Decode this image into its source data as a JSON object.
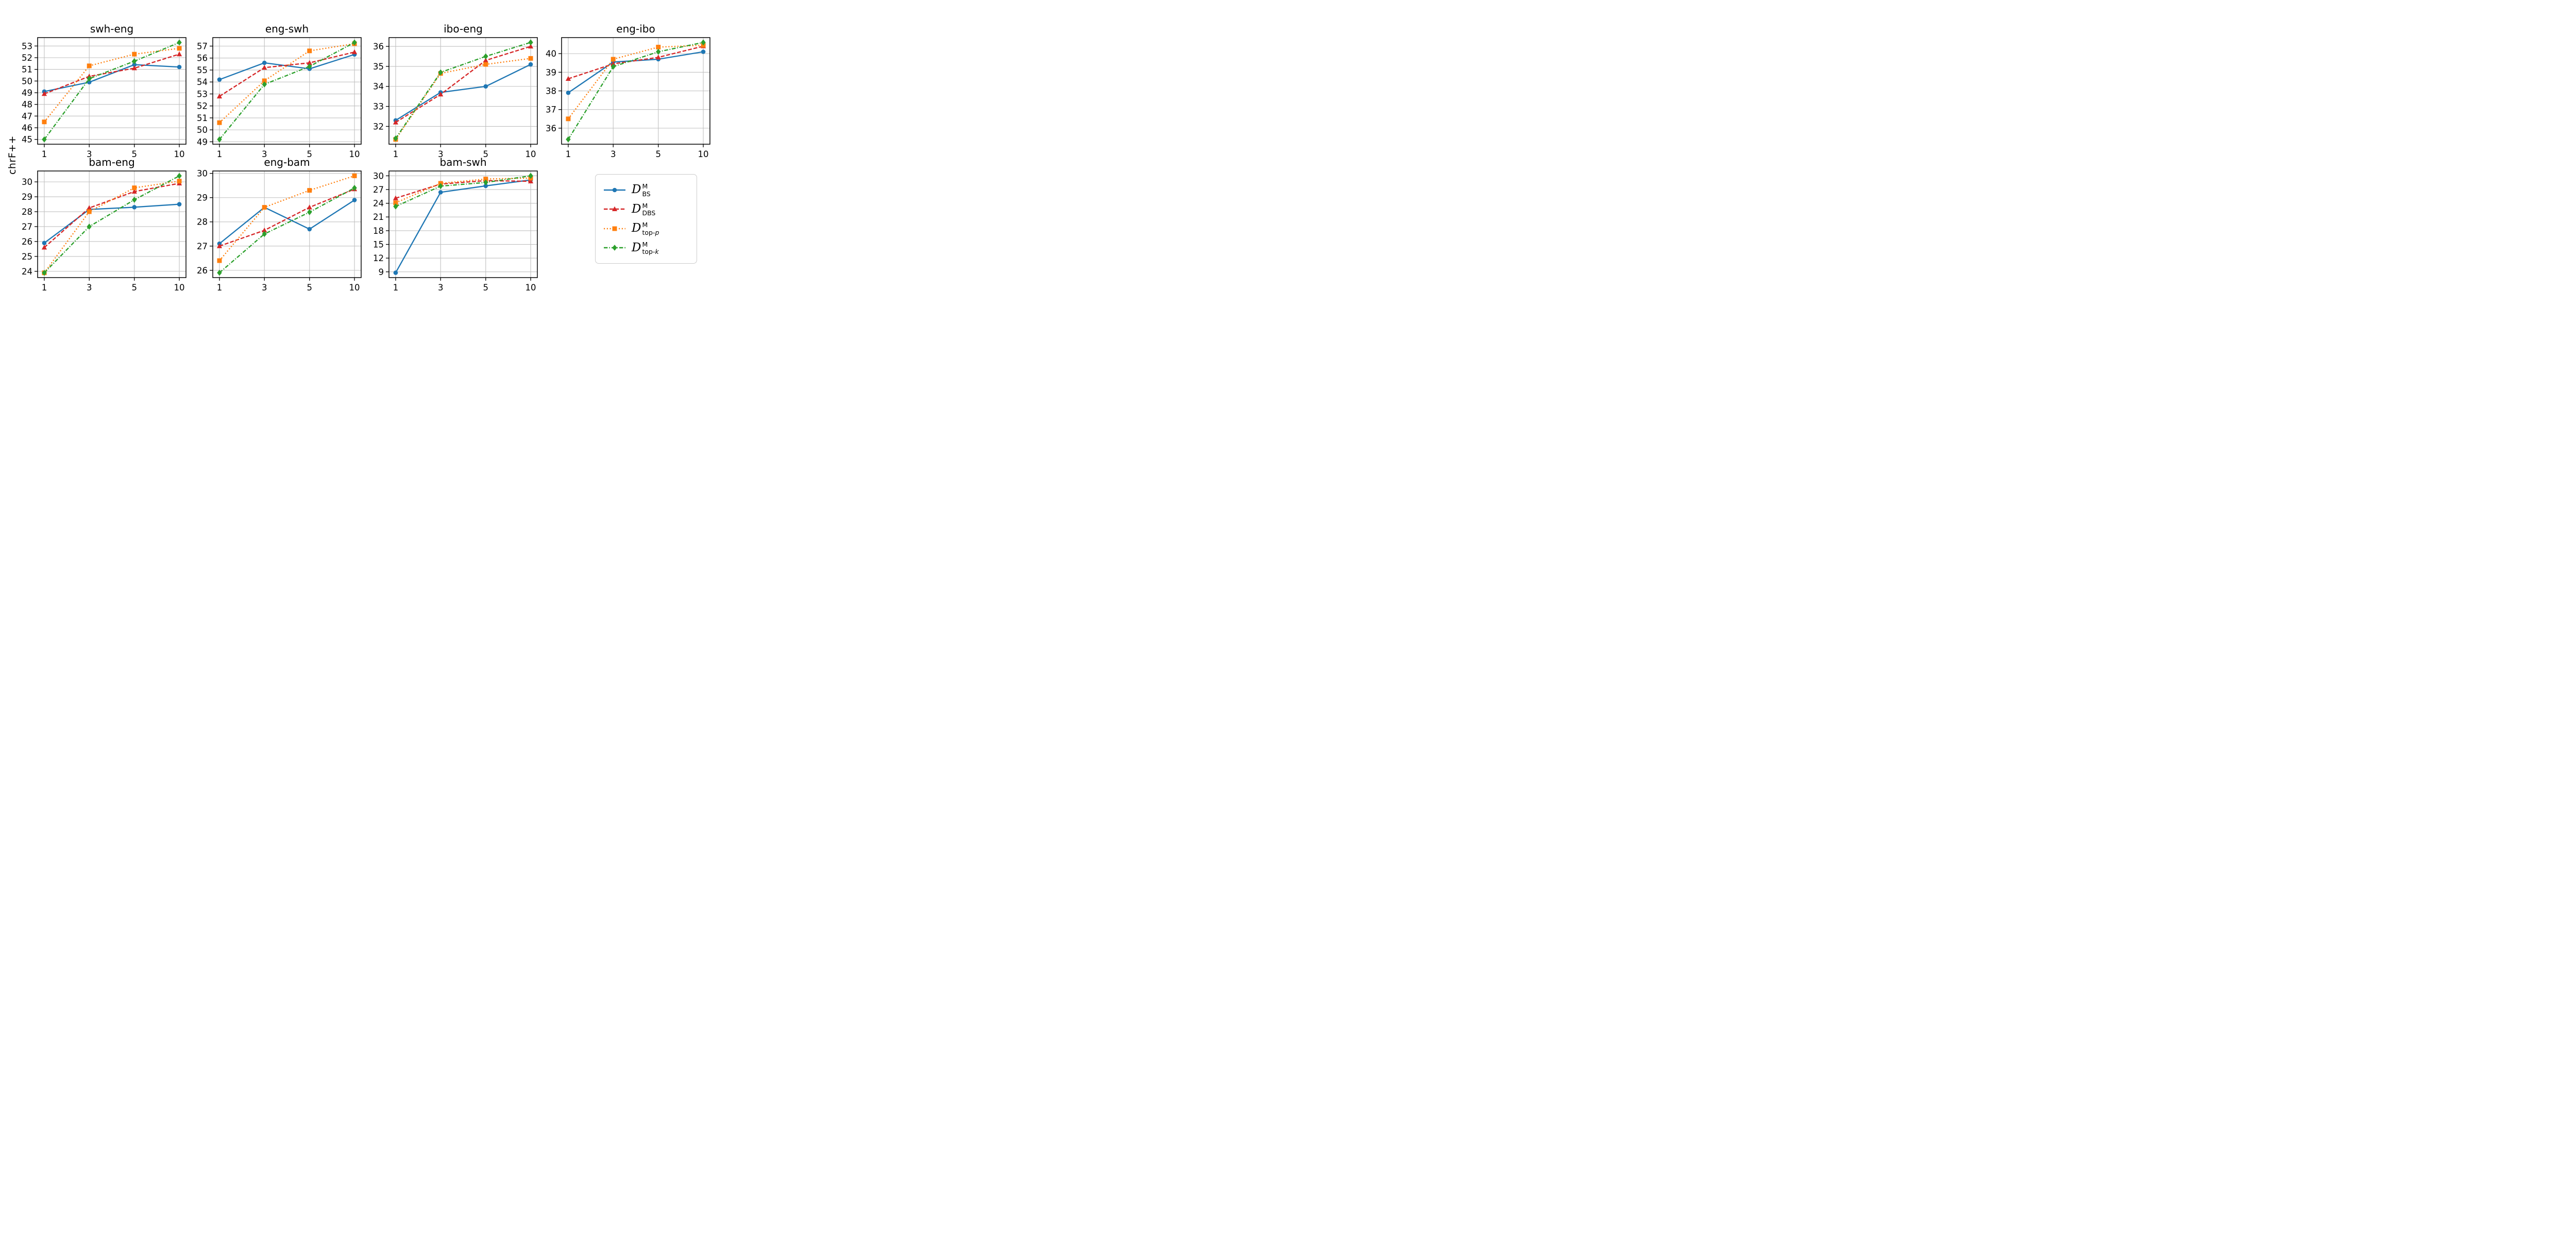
{
  "figure": {
    "background": "#ffffff",
    "grid_color": "#c0c0c0",
    "spine_color": "#000000"
  },
  "chart_data": {
    "type": "line",
    "ylabel": "chrF++",
    "grid": true,
    "legend_position": "lower-right-outside",
    "x_categories": [
      1,
      3,
      5,
      10
    ],
    "x_tick_labels": [
      "1",
      "3",
      "5",
      "10"
    ],
    "series_meta": [
      {
        "name": "D^M_BS",
        "color": "#1f77b4",
        "marker": "circle",
        "linestyle": "solid",
        "label": {
          "base": "D",
          "sup": "M",
          "sub": "BS",
          "sub_italic": ""
        }
      },
      {
        "name": "D^M_DBS",
        "color": "#d62728",
        "marker": "triangle",
        "linestyle": "dashed",
        "label": {
          "base": "D",
          "sup": "M",
          "sub": "DBS",
          "sub_italic": ""
        }
      },
      {
        "name": "D^M_top-p",
        "color": "#ff7f0e",
        "marker": "square",
        "linestyle": "dotted",
        "label": {
          "base": "D",
          "sup": "M",
          "sub": "top-",
          "sub_italic": "p"
        }
      },
      {
        "name": "D^M_top-k",
        "color": "#2ca02c",
        "marker": "diamond",
        "linestyle": "dashdot",
        "label": {
          "base": "D",
          "sup": "M",
          "sub": "top-",
          "sub_italic": "k"
        }
      }
    ],
    "subplots": [
      {
        "title": "swh-eng",
        "ylim": [
          44.59,
          53.72
        ],
        "yticks": [
          45,
          46,
          47,
          48,
          49,
          50,
          51,
          52,
          53
        ],
        "series": [
          [
            49.1,
            49.9,
            51.4,
            51.2
          ],
          [
            48.9,
            50.4,
            51.1,
            52.3
          ],
          [
            46.5,
            51.3,
            52.3,
            52.8
          ],
          [
            45.0,
            50.2,
            51.7,
            53.3
          ]
        ]
      },
      {
        "title": "eng-swh",
        "ylim": [
          48.8,
          57.71
        ],
        "yticks": [
          49,
          50,
          51,
          52,
          53,
          54,
          55,
          56,
          57
        ],
        "series": [
          [
            54.2,
            55.6,
            55.1,
            56.3
          ],
          [
            52.8,
            55.2,
            55.6,
            56.5
          ],
          [
            50.6,
            54.1,
            56.6,
            57.2
          ],
          [
            49.2,
            53.8,
            55.3,
            57.3
          ]
        ]
      },
      {
        "title": "ibo-eng",
        "ylim": [
          31.11,
          36.44
        ],
        "yticks": [
          32,
          33,
          34,
          35,
          36
        ],
        "series": [
          [
            32.3,
            33.7,
            34.0,
            35.1
          ],
          [
            32.2,
            33.6,
            35.3,
            36.0
          ],
          [
            31.35,
            34.65,
            35.1,
            35.4
          ],
          [
            31.4,
            34.7,
            35.5,
            36.2
          ]
        ]
      },
      {
        "title": "eng-ibo",
        "ylim": [
          35.14,
          40.86
        ],
        "yticks": [
          36,
          37,
          38,
          39,
          40
        ],
        "series": [
          [
            37.9,
            39.55,
            39.7,
            40.1
          ],
          [
            38.65,
            39.45,
            39.8,
            40.4
          ],
          [
            36.5,
            39.7,
            40.35,
            40.45
          ],
          [
            35.4,
            39.3,
            40.1,
            40.6
          ]
        ]
      },
      {
        "title": "bam-eng",
        "ylim": [
          23.58,
          30.73
        ],
        "yticks": [
          24,
          25,
          26,
          27,
          28,
          29,
          30
        ],
        "series": [
          [
            25.9,
            28.15,
            28.3,
            28.5
          ],
          [
            25.6,
            28.25,
            29.35,
            29.9
          ],
          [
            23.9,
            28.0,
            29.6,
            30.05
          ],
          [
            23.9,
            27.0,
            28.8,
            30.4
          ]
        ]
      },
      {
        "title": "eng-bam",
        "ylim": [
          25.7,
          30.1
        ],
        "yticks": [
          26,
          27,
          28,
          29,
          30
        ],
        "series": [
          [
            27.1,
            28.6,
            27.7,
            28.9
          ],
          [
            27.0,
            27.65,
            28.6,
            29.35
          ],
          [
            26.4,
            28.6,
            29.3,
            29.9
          ],
          [
            25.9,
            27.5,
            28.4,
            29.4
          ]
        ]
      },
      {
        "title": "bam-swh",
        "ylim": [
          7.74,
          31.06
        ],
        "yticks": [
          9,
          12,
          15,
          18,
          21,
          24,
          27,
          30
        ],
        "series": [
          [
            8.8,
            26.4,
            27.8,
            29.1
          ],
          [
            25.1,
            28.2,
            28.95,
            28.8
          ],
          [
            24.1,
            28.35,
            29.3,
            29.5
          ],
          [
            23.3,
            27.75,
            28.55,
            30.0
          ]
        ]
      }
    ]
  }
}
